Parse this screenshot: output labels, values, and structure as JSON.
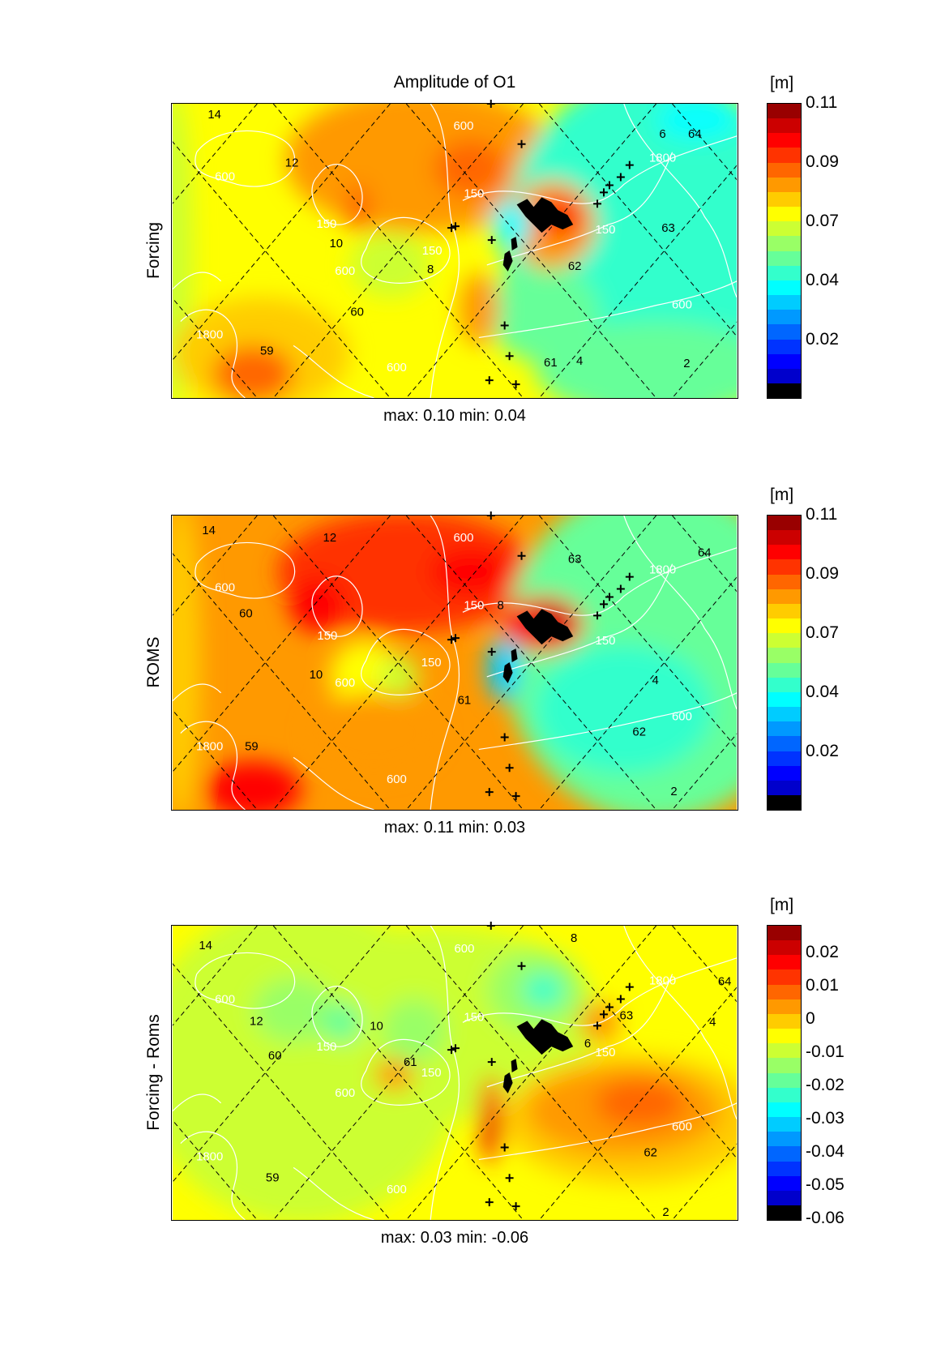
{
  "figure": {
    "title": "Amplitude of O1"
  },
  "colormap": [
    "#990000",
    "#cc0000",
    "#ff0000",
    "#ff3300",
    "#ff6600",
    "#ff9900",
    "#ffcc00",
    "#ffff00",
    "#ccff33",
    "#99ff66",
    "#66ff99",
    "#33ffcc",
    "#00ffff",
    "#00ccff",
    "#0099ff",
    "#0066ff",
    "#0033ff",
    "#0000ff",
    "#0000cc",
    "#000000"
  ],
  "panels": [
    {
      "ylabel": "Forcing",
      "stats": "max: 0.10 min: 0.04",
      "colorbar": {
        "unit": "[m]",
        "ticks": [
          "0.11",
          "0.09",
          "0.07",
          "0.04",
          "0.02"
        ]
      },
      "labels": [
        "14",
        "12",
        "600",
        "150",
        "10",
        "600",
        "150",
        "8",
        "60",
        "1800",
        "59",
        "600",
        "600",
        "150",
        "1800",
        "6",
        "64",
        "150",
        "63",
        "62",
        "600",
        "61",
        "4",
        "2"
      ]
    },
    {
      "ylabel": "ROMS",
      "stats": "max: 0.11 min: 0.03",
      "colorbar": {
        "unit": "[m]",
        "ticks": [
          "0.11",
          "0.09",
          "0.07",
          "0.04",
          "0.02"
        ]
      },
      "labels": [
        "14",
        "12",
        "600",
        "60",
        "150",
        "10",
        "600",
        "150",
        "61",
        "1800",
        "59",
        "600",
        "600",
        "150",
        "8",
        "63",
        "64",
        "1800",
        "150",
        "4",
        "62",
        "600",
        "2"
      ]
    },
    {
      "ylabel": "Forcing - Roms",
      "stats": "max: 0.03 min: -0.06",
      "colorbar": {
        "unit": "[m]",
        "ticks": [
          "0.02",
          "0.01",
          "0",
          "-0.01",
          "-0.02",
          "-0.03",
          "-0.04",
          "-0.05",
          "-0.06"
        ]
      },
      "labels": [
        "14",
        "600",
        "8",
        "600",
        "12",
        "10",
        "150",
        "60",
        "61",
        "150",
        "150",
        "600",
        "1800",
        "64",
        "63",
        "6",
        "150",
        "4",
        "600",
        "62",
        "1800",
        "59",
        "600",
        "2"
      ]
    }
  ]
}
